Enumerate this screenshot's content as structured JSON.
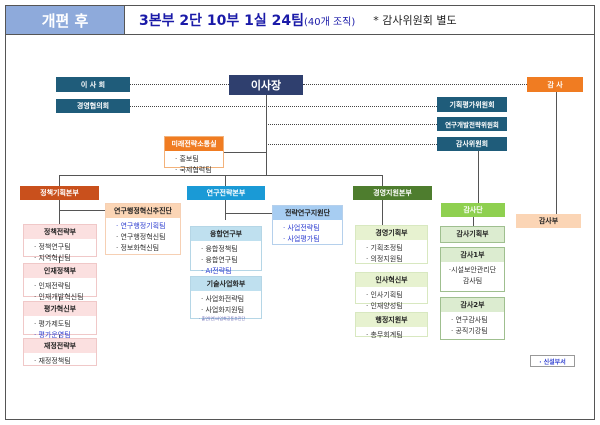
{
  "header": {
    "label": "개편 후",
    "summary": "3본부 2단 10부 1실 24팀",
    "count": "(40개 조직)",
    "note": "* 감사위원회 별도"
  },
  "colors": {
    "header": "#8eaadb",
    "board": "#1f5c7a",
    "president": "#2f3f6e",
    "auditor": "#f07c22",
    "policy": "#c9501c",
    "research": "#1a9ad6",
    "management": "#4e7d2e",
    "audit_group": "#8fd050",
    "new_unit_text": "#2f3fd0"
  },
  "top": {
    "board": "이 사 회",
    "mgmt_council": "경영협의회",
    "president": "이사장",
    "auditor": "감 사",
    "committee1": "기획평가위원회",
    "committee2": "연구개발전략위원회",
    "committee3": "감사위원회"
  },
  "headquarters": {
    "policy": "정책기획본부",
    "research": "연구전략본부",
    "management": "경영지원본부",
    "audit_group": "감사단",
    "audit_dept": "감사부"
  },
  "groups": {
    "future": {
      "title": "미래전략소통실",
      "items": [
        {
          "t": "· 홍보팀"
        },
        {
          "t": "· 국제협력팀"
        }
      ]
    },
    "admin_innov": {
      "title": "연구행정혁신추진단",
      "items": [
        {
          "t": "· 연구행정기획팀",
          "new": true
        },
        {
          "t": "· 연구행정혁신팀"
        },
        {
          "t": "· 정보화혁신팀"
        }
      ]
    },
    "policy_strat": {
      "title": "정책전략부",
      "items": [
        {
          "t": "· 정책연구팀"
        },
        {
          "t": "· 지역혁신팀"
        }
      ]
    },
    "talent": {
      "title": "인재정책부",
      "items": [
        {
          "t": "· 인재전략팀"
        },
        {
          "t": "· 인재개발혁신팀"
        }
      ]
    },
    "eval": {
      "title": "평가혁신부",
      "items": [
        {
          "t": "· 평가제도팀"
        },
        {
          "t": "· 평가운영팀",
          "new": true
        }
      ]
    },
    "finance": {
      "title": "재정전략부",
      "items": [
        {
          "t": "· 재정정책팀"
        }
      ]
    },
    "convergence": {
      "title": "융합연구부",
      "items": [
        {
          "t": "· 융합정책팀"
        },
        {
          "t": "· 융합연구팀"
        },
        {
          "t": "· AI전략팀",
          "new": true
        }
      ]
    },
    "commercial": {
      "title": "기술사업화부",
      "items": [
        {
          "t": "· 사업화전략팀"
        },
        {
          "t": "· 사업화지원팀"
        }
      ],
      "tiny": "· 출연(연)사업화공동추진단"
    },
    "strat_support": {
      "title": "전략연구지원단",
      "items": [
        {
          "t": "· 사업전략팀",
          "new": true
        },
        {
          "t": "· 사업평가팀",
          "new": true
        }
      ]
    },
    "mgmt_plan": {
      "title": "경영기획부",
      "items": [
        {
          "t": "· 기획조정팀"
        },
        {
          "t": "· 의정지원팀"
        }
      ]
    },
    "hr": {
      "title": "인사혁신부",
      "items": [
        {
          "t": "· 인사기획팀"
        },
        {
          "t": "· 인재양성팀"
        }
      ]
    },
    "admin_support": {
      "title": "행정지원부",
      "items": [
        {
          "t": "· 총무회계팀"
        }
      ]
    },
    "audit_plan": {
      "title": "감사기획부",
      "items": []
    },
    "audit1": {
      "title": "감사1부",
      "items": [
        {
          "t": "·시설보안관리단",
          "c": true
        },
        {
          "t": "감사팀",
          "c": true
        }
      ]
    },
    "audit2": {
      "title": "감사2부",
      "items": [
        {
          "t": "· 연구감사팀"
        },
        {
          "t": "· 공직기강팀"
        }
      ]
    }
  },
  "legend": "· 신설부서"
}
